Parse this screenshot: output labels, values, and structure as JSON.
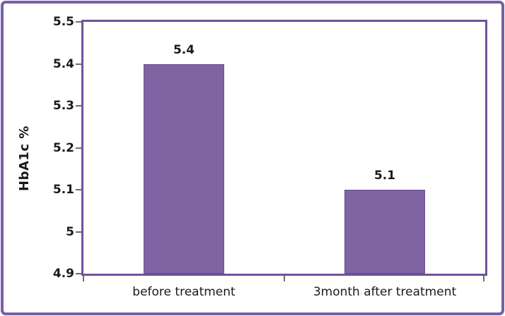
{
  "chart_data": {
    "type": "bar",
    "categories": [
      "before treatment",
      "3month after treatment"
    ],
    "values": [
      5.4,
      5.1
    ],
    "value_labels": [
      "5.4",
      "5.1"
    ],
    "title": "",
    "xlabel": "",
    "ylabel": "HbA1c %",
    "ylim": [
      4.9,
      5.5
    ],
    "yticks": [
      5.5,
      5.4,
      5.3,
      5.2,
      5.1,
      5.0,
      4.9
    ],
    "ytick_labels": [
      "5.5",
      "5.4",
      "5.3",
      "5.2",
      "5.1",
      "5",
      "4.9"
    ],
    "grid": false,
    "legend": null,
    "bar_width_fraction": 0.4
  },
  "colors": {
    "bar_fill": "#7E64A3",
    "bar_border": "#6A4D8E",
    "plot_border": "#6F5399",
    "outer_border": "#7A5DA8",
    "tick": "#6d6d6d",
    "text": "#1a1a1a",
    "background": "#FFFFFF"
  }
}
